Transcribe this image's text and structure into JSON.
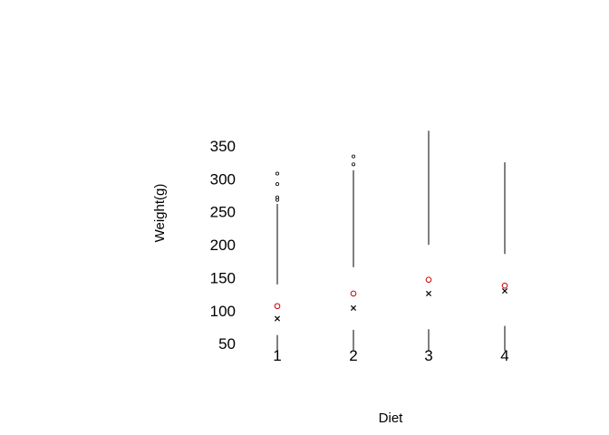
{
  "chart_data": {
    "type": "boxplot",
    "xlabel": "Diet",
    "ylabel": "Weight(g)",
    "categories": [
      "1",
      "2",
      "3",
      "4"
    ],
    "y_ticks": [
      50,
      100,
      150,
      200,
      250,
      300,
      350
    ],
    "ylim": [
      25,
      385
    ],
    "grid": false,
    "legend": "none",
    "boxes": [
      {
        "category": "1",
        "whisker_low": 35,
        "q1": 63,
        "q3": 140,
        "whisker_high": 262,
        "median": 88,
        "mean": 107,
        "outliers": [
          268,
          272,
          292,
          308
        ]
      },
      {
        "category": "2",
        "whisker_low": 39,
        "q1": 71,
        "q3": 166,
        "whisker_high": 313,
        "median": 104,
        "mean": 126,
        "outliers": [
          322,
          334
        ]
      },
      {
        "category": "3",
        "whisker_low": 39,
        "q1": 72,
        "q3": 200,
        "whisker_high": 373,
        "median": 126,
        "mean": 147,
        "outliers": []
      },
      {
        "category": "4",
        "whisker_low": 39,
        "q1": 77,
        "q3": 186,
        "whisker_high": 325,
        "median": 130,
        "mean": 138,
        "outliers": []
      }
    ],
    "colors": {
      "line": "#000000",
      "mean_marker": "#cc0000",
      "median_marker": "#000000",
      "outlier": "#000000"
    }
  }
}
